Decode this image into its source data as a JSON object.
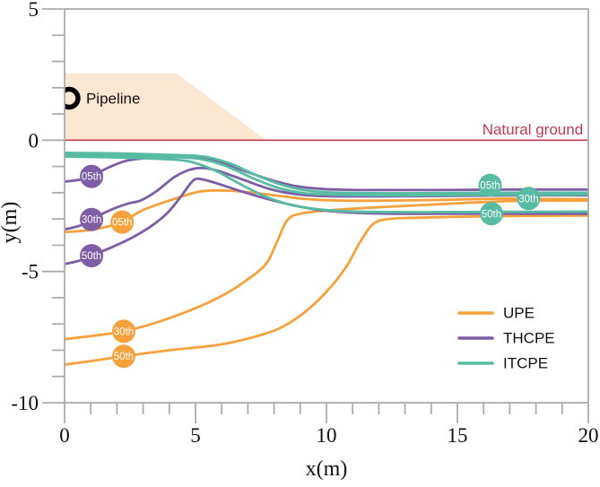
{
  "chart_data": {
    "type": "line",
    "title": "",
    "xlabel": "x(m)",
    "ylabel": "y(m)",
    "xlim": [
      0,
      20
    ],
    "ylim": [
      -10,
      5
    ],
    "x_major_ticks": [
      0,
      5,
      10,
      15,
      20
    ],
    "y_major_ticks": [
      5,
      0,
      -5,
      -10
    ],
    "minor_tick_step": 1,
    "grid": false,
    "axis_color": "#ACACAC",
    "legend": {
      "position": "lower-right",
      "entries": [
        "UPE",
        "THCPE",
        "ITCPE"
      ]
    },
    "series": [
      {
        "name": "UPE",
        "color": "#F6A13B",
        "percentiles": [
          {
            "label": "05th",
            "marker_at": [
              2.2,
              -3.12
            ],
            "points": [
              [
                0,
                -3.5
              ],
              [
                0.8,
                -3.44
              ],
              [
                1.6,
                -3.3
              ],
              [
                2.2,
                -3.12
              ],
              [
                3,
                -2.66
              ],
              [
                4.15,
                -2.25
              ],
              [
                5.2,
                -1.95
              ],
              [
                6.2,
                -1.92
              ],
              [
                7.2,
                -2.0
              ],
              [
                8.2,
                -2.12
              ],
              [
                9.2,
                -2.24
              ],
              [
                10.5,
                -2.3
              ],
              [
                12.5,
                -2.3
              ],
              [
                14.5,
                -2.27
              ],
              [
                16.5,
                -2.23
              ],
              [
                18.5,
                -2.24
              ],
              [
                20,
                -2.25
              ]
            ]
          },
          {
            "label": "30th",
            "marker_at": [
              2.26,
              -7.28
            ],
            "points": [
              [
                0,
                -7.58
              ],
              [
                1.1,
                -7.45
              ],
              [
                2.26,
                -7.28
              ],
              [
                3.5,
                -6.95
              ],
              [
                5,
                -6.4
              ],
              [
                6.1,
                -5.88
              ],
              [
                7,
                -5.3
              ],
              [
                7.7,
                -4.7
              ],
              [
                8.1,
                -3.9
              ],
              [
                8.5,
                -3.05
              ],
              [
                9,
                -2.8
              ],
              [
                10,
                -2.68
              ],
              [
                11.5,
                -2.58
              ],
              [
                13.5,
                -2.48
              ],
              [
                15.5,
                -2.38
              ],
              [
                17.5,
                -2.31
              ],
              [
                20,
                -2.3
              ]
            ]
          },
          {
            "label": "50th",
            "marker_at": [
              2.26,
              -8.23
            ],
            "points": [
              [
                0,
                -8.55
              ],
              [
                1.1,
                -8.4
              ],
              [
                2.26,
                -8.23
              ],
              [
                4,
                -8.0
              ],
              [
                5,
                -7.9
              ],
              [
                6.1,
                -7.76
              ],
              [
                7.5,
                -7.42
              ],
              [
                8.4,
                -7.07
              ],
              [
                9.3,
                -6.45
              ],
              [
                10.2,
                -5.55
              ],
              [
                10.8,
                -4.75
              ],
              [
                11.3,
                -3.85
              ],
              [
                11.8,
                -3.18
              ],
              [
                12.4,
                -3.0
              ],
              [
                13.5,
                -2.95
              ],
              [
                16,
                -2.9
              ],
              [
                18,
                -2.88
              ],
              [
                20,
                -2.87
              ]
            ]
          }
        ]
      },
      {
        "name": "THCPE",
        "color": "#7C5DA6",
        "percentiles": [
          {
            "label": "05th",
            "marker_at": [
              1.03,
              -1.38
            ],
            "points": [
              [
                0,
                -1.58
              ],
              [
                0.6,
                -1.5
              ],
              [
                1.03,
                -1.38
              ],
              [
                1.6,
                -1.08
              ],
              [
                2.3,
                -0.8
              ],
              [
                3.1,
                -0.68
              ],
              [
                4.2,
                -0.64
              ],
              [
                5,
                -0.66
              ],
              [
                5.9,
                -0.82
              ],
              [
                6.9,
                -1.18
              ],
              [
                7.9,
                -1.52
              ],
              [
                8.9,
                -1.76
              ],
              [
                9.9,
                -1.86
              ],
              [
                11.5,
                -1.9
              ],
              [
                14,
                -1.9
              ],
              [
                17,
                -1.88
              ],
              [
                20,
                -1.88
              ]
            ]
          },
          {
            "label": "30th",
            "marker_at": [
              1.03,
              -3.02
            ],
            "points": [
              [
                0,
                -3.4
              ],
              [
                0.6,
                -3.25
              ],
              [
                1.03,
                -3.02
              ],
              [
                1.7,
                -2.68
              ],
              [
                2.4,
                -2.42
              ],
              [
                2.9,
                -2.3
              ],
              [
                3.5,
                -1.95
              ],
              [
                4.2,
                -1.4
              ],
              [
                4.8,
                -1.12
              ],
              [
                5.3,
                -1.06
              ],
              [
                5.9,
                -1.18
              ],
              [
                6.8,
                -1.5
              ],
              [
                7.8,
                -1.85
              ],
              [
                8.8,
                -2.05
              ],
              [
                10,
                -2.13
              ],
              [
                12,
                -2.14
              ],
              [
                15,
                -2.12
              ],
              [
                17.5,
                -2.1
              ],
              [
                20,
                -2.1
              ]
            ]
          },
          {
            "label": "50th",
            "marker_at": [
              1.03,
              -4.4
            ],
            "points": [
              [
                0,
                -4.72
              ],
              [
                0.6,
                -4.58
              ],
              [
                1.03,
                -4.4
              ],
              [
                1.8,
                -4.08
              ],
              [
                2.6,
                -3.7
              ],
              [
                3.3,
                -3.28
              ],
              [
                3.9,
                -2.8
              ],
              [
                4.4,
                -2.2
              ],
              [
                4.75,
                -1.72
              ],
              [
                5.0,
                -1.48
              ],
              [
                5.3,
                -1.5
              ],
              [
                5.8,
                -1.64
              ],
              [
                6.6,
                -1.9
              ],
              [
                7.6,
                -2.2
              ],
              [
                8.6,
                -2.45
              ],
              [
                9.6,
                -2.64
              ],
              [
                10.8,
                -2.75
              ],
              [
                12.5,
                -2.8
              ],
              [
                16,
                -2.8
              ],
              [
                20,
                -2.8
              ]
            ]
          }
        ]
      },
      {
        "name": "ITCPE",
        "color": "#57BCA2",
        "percentiles": [
          {
            "label": "05th",
            "marker_at": [
              16.25,
              -1.72
            ],
            "points": [
              [
                0,
                -0.48
              ],
              [
                2,
                -0.5
              ],
              [
                4,
                -0.56
              ],
              [
                5.3,
                -0.62
              ],
              [
                6.3,
                -0.88
              ],
              [
                7.3,
                -1.32
              ],
              [
                8.3,
                -1.7
              ],
              [
                9.3,
                -1.92
              ],
              [
                10.5,
                -2.0
              ],
              [
                13,
                -2.02
              ],
              [
                16.5,
                -2.0
              ],
              [
                20,
                -2.0
              ]
            ]
          },
          {
            "label": "30th",
            "marker_at": [
              17.72,
              -2.22
            ],
            "points": [
              [
                0,
                -0.55
              ],
              [
                2,
                -0.58
              ],
              [
                4,
                -0.64
              ],
              [
                5.2,
                -0.72
              ],
              [
                6.2,
                -1.0
              ],
              [
                7.2,
                -1.45
              ],
              [
                8.2,
                -1.83
              ],
              [
                9.2,
                -2.02
              ],
              [
                10.5,
                -2.08
              ],
              [
                13,
                -2.1
              ],
              [
                16.5,
                -2.08
              ],
              [
                20,
                -2.07
              ]
            ]
          },
          {
            "label": "50th",
            "marker_at": [
              16.3,
              -2.8
            ],
            "points": [
              [
                0,
                -0.62
              ],
              [
                2,
                -0.66
              ],
              [
                3.8,
                -0.72
              ],
              [
                4.8,
                -0.82
              ],
              [
                5.8,
                -1.18
              ],
              [
                6.8,
                -1.72
              ],
              [
                7.8,
                -2.2
              ],
              [
                8.8,
                -2.5
              ],
              [
                10,
                -2.66
              ],
              [
                11.5,
                -2.73
              ],
              [
                14,
                -2.74
              ],
              [
                17,
                -2.73
              ],
              [
                20,
                -2.72
              ]
            ]
          }
        ]
      }
    ],
    "annotations": {
      "natural_ground": {
        "text": "Natural ground",
        "color": "#C23B50",
        "anchor_xy": [
          19.8,
          0.25
        ]
      },
      "pipeline": {
        "text": "Pipeline",
        "color": "#111111",
        "ring_center_xy": [
          0.17,
          1.6
        ],
        "ring_radius_m": 0.42
      },
      "berm_region": {
        "fill": "#FCE7D3",
        "polygon": [
          [
            0,
            0
          ],
          [
            0,
            2.55
          ],
          [
            4.28,
            2.55
          ],
          [
            7.7,
            0
          ]
        ]
      },
      "ground_hatch": {
        "color": "#C23B50",
        "y": 0,
        "band_depth_m": 0.42
      }
    }
  }
}
